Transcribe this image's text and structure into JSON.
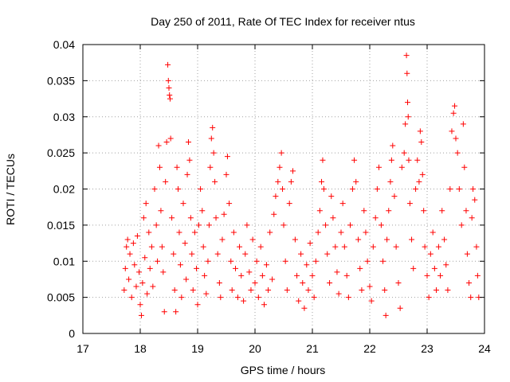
{
  "chart_data": {
    "type": "scatter",
    "title": "Day 250 of 2011, Rate Of TEC Index for receiver ntus",
    "xlabel": "GPS time / hours",
    "ylabel": "ROTI / TECUs",
    "xlim": [
      17,
      24
    ],
    "ylim": [
      0,
      0.04
    ],
    "x_ticks": [
      "17",
      "18",
      "19",
      "20",
      "21",
      "22",
      "23",
      "24"
    ],
    "y_ticks": [
      "0",
      "0.005",
      "0.01",
      "0.015",
      "0.02",
      "0.025",
      "0.03",
      "0.035",
      "0.04"
    ],
    "x_tick_values": [
      17,
      18,
      19,
      20,
      21,
      22,
      23,
      24
    ],
    "y_tick_values": [
      0,
      0.005,
      0.01,
      0.015,
      0.02,
      0.025,
      0.03,
      0.035,
      0.04
    ],
    "grid": true,
    "marker": "+",
    "marker_color": "#ff0000",
    "series": [
      {
        "points": [
          [
            17.72,
            0.006
          ],
          [
            17.74,
            0.009
          ],
          [
            17.76,
            0.012
          ],
          [
            17.78,
            0.013
          ],
          [
            17.8,
            0.0075
          ],
          [
            17.82,
            0.011
          ],
          [
            17.85,
            0.005
          ],
          [
            17.88,
            0.0125
          ],
          [
            17.9,
            0.0095
          ],
          [
            17.93,
            0.0065
          ],
          [
            17.95,
            0.0135
          ],
          [
            17.98,
            0.0085
          ],
          [
            18.0,
            0.004
          ],
          [
            18.02,
            0.0025
          ],
          [
            18.04,
            0.007
          ],
          [
            18.06,
            0.016
          ],
          [
            18.08,
            0.0105
          ],
          [
            18.1,
            0.018
          ],
          [
            18.12,
            0.0055
          ],
          [
            18.15,
            0.014
          ],
          [
            18.17,
            0.009
          ],
          [
            18.2,
            0.012
          ],
          [
            18.22,
            0.0065
          ],
          [
            18.25,
            0.02
          ],
          [
            18.28,
            0.015
          ],
          [
            18.3,
            0.01
          ],
          [
            18.32,
            0.026
          ],
          [
            18.34,
            0.023
          ],
          [
            18.36,
            0.017
          ],
          [
            18.38,
            0.012
          ],
          [
            18.4,
            0.0085
          ],
          [
            18.42,
            0.003
          ],
          [
            18.44,
            0.021
          ],
          [
            18.46,
            0.0265
          ],
          [
            18.48,
            0.0372
          ],
          [
            18.49,
            0.035
          ],
          [
            18.5,
            0.034
          ],
          [
            18.51,
            0.033
          ],
          [
            18.52,
            0.0325
          ],
          [
            18.53,
            0.027
          ],
          [
            18.55,
            0.016
          ],
          [
            18.58,
            0.011
          ],
          [
            18.6,
            0.006
          ],
          [
            18.62,
            0.003
          ],
          [
            18.64,
            0.023
          ],
          [
            18.66,
            0.02
          ],
          [
            18.68,
            0.014
          ],
          [
            18.7,
            0.0095
          ],
          [
            18.72,
            0.005
          ],
          [
            18.75,
            0.018
          ],
          [
            18.78,
            0.0125
          ],
          [
            18.8,
            0.0075
          ],
          [
            18.82,
            0.022
          ],
          [
            18.84,
            0.0265
          ],
          [
            18.86,
            0.024
          ],
          [
            18.88,
            0.016
          ],
          [
            18.9,
            0.011
          ],
          [
            18.92,
            0.006
          ],
          [
            18.95,
            0.014
          ],
          [
            18.98,
            0.009
          ],
          [
            19.0,
            0.004
          ],
          [
            19.02,
            0.015
          ],
          [
            19.05,
            0.02
          ],
          [
            19.08,
            0.017
          ],
          [
            19.1,
            0.012
          ],
          [
            19.12,
            0.008
          ],
          [
            19.15,
            0.0055
          ],
          [
            19.18,
            0.01
          ],
          [
            19.2,
            0.015
          ],
          [
            19.22,
            0.023
          ],
          [
            19.24,
            0.027
          ],
          [
            19.26,
            0.0285
          ],
          [
            19.28,
            0.025
          ],
          [
            19.3,
            0.021
          ],
          [
            19.32,
            0.016
          ],
          [
            19.35,
            0.011
          ],
          [
            19.38,
            0.007
          ],
          [
            19.4,
            0.005
          ],
          [
            19.43,
            0.013
          ],
          [
            19.46,
            0.0165
          ],
          [
            19.5,
            0.022
          ],
          [
            19.52,
            0.0245
          ],
          [
            19.55,
            0.018
          ],
          [
            19.58,
            0.01
          ],
          [
            19.6,
            0.006
          ],
          [
            19.63,
            0.014
          ],
          [
            19.66,
            0.009
          ],
          [
            19.7,
            0.005
          ],
          [
            19.73,
            0.012
          ],
          [
            19.76,
            0.008
          ],
          [
            19.8,
            0.0045
          ],
          [
            19.83,
            0.011
          ],
          [
            19.86,
            0.015
          ],
          [
            19.9,
            0.0085
          ],
          [
            19.93,
            0.006
          ],
          [
            19.96,
            0.013
          ],
          [
            20.0,
            0.007
          ],
          [
            20.03,
            0.01
          ],
          [
            20.06,
            0.005
          ],
          [
            20.1,
            0.012
          ],
          [
            20.13,
            0.008
          ],
          [
            20.16,
            0.004
          ],
          [
            20.2,
            0.0095
          ],
          [
            20.23,
            0.006
          ],
          [
            20.26,
            0.014
          ],
          [
            20.3,
            0.0075
          ],
          [
            20.33,
            0.0165
          ],
          [
            20.36,
            0.019
          ],
          [
            20.4,
            0.021
          ],
          [
            20.43,
            0.023
          ],
          [
            20.46,
            0.025
          ],
          [
            20.48,
            0.02
          ],
          [
            20.5,
            0.015
          ],
          [
            20.53,
            0.01
          ],
          [
            20.56,
            0.006
          ],
          [
            20.6,
            0.018
          ],
          [
            20.63,
            0.021
          ],
          [
            20.66,
            0.0225
          ],
          [
            20.7,
            0.013
          ],
          [
            20.73,
            0.008
          ],
          [
            20.76,
            0.0045
          ],
          [
            20.8,
            0.011
          ],
          [
            20.83,
            0.007
          ],
          [
            20.86,
            0.0035
          ],
          [
            20.9,
            0.0095
          ],
          [
            20.93,
            0.006
          ],
          [
            20.96,
            0.0125
          ],
          [
            21.0,
            0.008
          ],
          [
            21.03,
            0.005
          ],
          [
            21.06,
            0.01
          ],
          [
            21.1,
            0.014
          ],
          [
            21.13,
            0.017
          ],
          [
            21.16,
            0.021
          ],
          [
            21.18,
            0.024
          ],
          [
            21.2,
            0.02
          ],
          [
            21.23,
            0.015
          ],
          [
            21.26,
            0.011
          ],
          [
            21.3,
            0.007
          ],
          [
            21.33,
            0.019
          ],
          [
            21.36,
            0.016
          ],
          [
            21.4,
            0.012
          ],
          [
            21.43,
            0.0085
          ],
          [
            21.46,
            0.0055
          ],
          [
            21.5,
            0.014
          ],
          [
            21.53,
            0.018
          ],
          [
            21.56,
            0.012
          ],
          [
            21.6,
            0.008
          ],
          [
            21.63,
            0.005
          ],
          [
            21.66,
            0.015
          ],
          [
            21.7,
            0.02
          ],
          [
            21.73,
            0.024
          ],
          [
            21.76,
            0.021
          ],
          [
            21.8,
            0.013
          ],
          [
            21.83,
            0.009
          ],
          [
            21.86,
            0.006
          ],
          [
            21.9,
            0.017
          ],
          [
            21.93,
            0.014
          ],
          [
            21.96,
            0.01
          ],
          [
            22.0,
            0.0065
          ],
          [
            22.03,
            0.0045
          ],
          [
            22.06,
            0.012
          ],
          [
            22.1,
            0.016
          ],
          [
            22.13,
            0.02
          ],
          [
            22.16,
            0.023
          ],
          [
            22.2,
            0.015
          ],
          [
            22.23,
            0.01
          ],
          [
            22.26,
            0.006
          ],
          [
            22.28,
            0.0025
          ],
          [
            22.3,
            0.013
          ],
          [
            22.33,
            0.017
          ],
          [
            22.36,
            0.021
          ],
          [
            22.38,
            0.024
          ],
          [
            22.4,
            0.026
          ],
          [
            22.43,
            0.019
          ],
          [
            22.46,
            0.012
          ],
          [
            22.5,
            0.007
          ],
          [
            22.53,
            0.0035
          ],
          [
            22.56,
            0.023
          ],
          [
            22.6,
            0.025
          ],
          [
            22.62,
            0.029
          ],
          [
            22.64,
            0.0385
          ],
          [
            22.65,
            0.036
          ],
          [
            22.66,
            0.032
          ],
          [
            22.67,
            0.03
          ],
          [
            22.68,
            0.024
          ],
          [
            22.7,
            0.018
          ],
          [
            22.73,
            0.013
          ],
          [
            22.76,
            0.009
          ],
          [
            22.8,
            0.02
          ],
          [
            22.83,
            0.024
          ],
          [
            22.86,
            0.021
          ],
          [
            22.88,
            0.028
          ],
          [
            22.9,
            0.0265
          ],
          [
            22.92,
            0.022
          ],
          [
            22.94,
            0.017
          ],
          [
            22.96,
            0.012
          ],
          [
            23.0,
            0.008
          ],
          [
            23.03,
            0.005
          ],
          [
            23.06,
            0.011
          ],
          [
            23.1,
            0.014
          ],
          [
            23.13,
            0.009
          ],
          [
            23.16,
            0.006
          ],
          [
            23.2,
            0.012
          ],
          [
            23.23,
            0.008
          ],
          [
            23.26,
            0.017
          ],
          [
            23.3,
            0.013
          ],
          [
            23.33,
            0.0095
          ],
          [
            23.36,
            0.006
          ],
          [
            23.4,
            0.02
          ],
          [
            23.43,
            0.028
          ],
          [
            23.46,
            0.0305
          ],
          [
            23.48,
            0.0315
          ],
          [
            23.5,
            0.027
          ],
          [
            23.53,
            0.025
          ],
          [
            23.56,
            0.02
          ],
          [
            23.6,
            0.015
          ],
          [
            23.63,
            0.029
          ],
          [
            23.65,
            0.023
          ],
          [
            23.68,
            0.017
          ],
          [
            23.7,
            0.011
          ],
          [
            23.73,
            0.007
          ],
          [
            23.76,
            0.005
          ],
          [
            23.78,
            0.016
          ],
          [
            23.8,
            0.02
          ],
          [
            23.83,
            0.0185
          ],
          [
            23.86,
            0.012
          ],
          [
            23.88,
            0.008
          ],
          [
            23.9,
            0.005
          ]
        ]
      }
    ]
  }
}
